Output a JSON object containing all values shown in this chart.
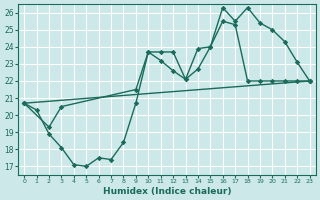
{
  "xlabel": "Humidex (Indice chaleur)",
  "bg_color": "#cce8e8",
  "grid_color": "#b8d8d8",
  "line_color": "#1a6b5a",
  "xlim": [
    -0.5,
    23.5
  ],
  "ylim": [
    16.5,
    26.5
  ],
  "xticks": [
    0,
    1,
    2,
    3,
    4,
    5,
    6,
    7,
    8,
    9,
    10,
    11,
    12,
    13,
    14,
    15,
    16,
    17,
    18,
    19,
    20,
    21,
    22,
    23
  ],
  "yticks": [
    17,
    18,
    19,
    20,
    21,
    22,
    23,
    24,
    25,
    26
  ],
  "line1_x": [
    0,
    23
  ],
  "line1_y": [
    20.7,
    22.0
  ],
  "line2_x": [
    0,
    1,
    2,
    3,
    4,
    5,
    6,
    7,
    8,
    9,
    10,
    11,
    12,
    13,
    14,
    15,
    16,
    17,
    18,
    19,
    20,
    21,
    22,
    23
  ],
  "line2_y": [
    20.7,
    20.3,
    18.9,
    18.1,
    17.1,
    17.0,
    17.5,
    17.4,
    18.4,
    20.7,
    23.7,
    23.7,
    23.7,
    22.1,
    22.7,
    24.0,
    26.3,
    25.5,
    26.3,
    25.4,
    25.0,
    24.3,
    23.1,
    22.0
  ],
  "line3_x": [
    0,
    2,
    3,
    9,
    10,
    11,
    12,
    13,
    14,
    15,
    16,
    17,
    18,
    19,
    20,
    21,
    22,
    23
  ],
  "line3_y": [
    20.7,
    19.3,
    20.5,
    21.5,
    23.7,
    23.2,
    22.6,
    22.1,
    23.9,
    24.0,
    25.5,
    25.3,
    22.0,
    22.0,
    22.0,
    22.0,
    22.0,
    22.0
  ]
}
